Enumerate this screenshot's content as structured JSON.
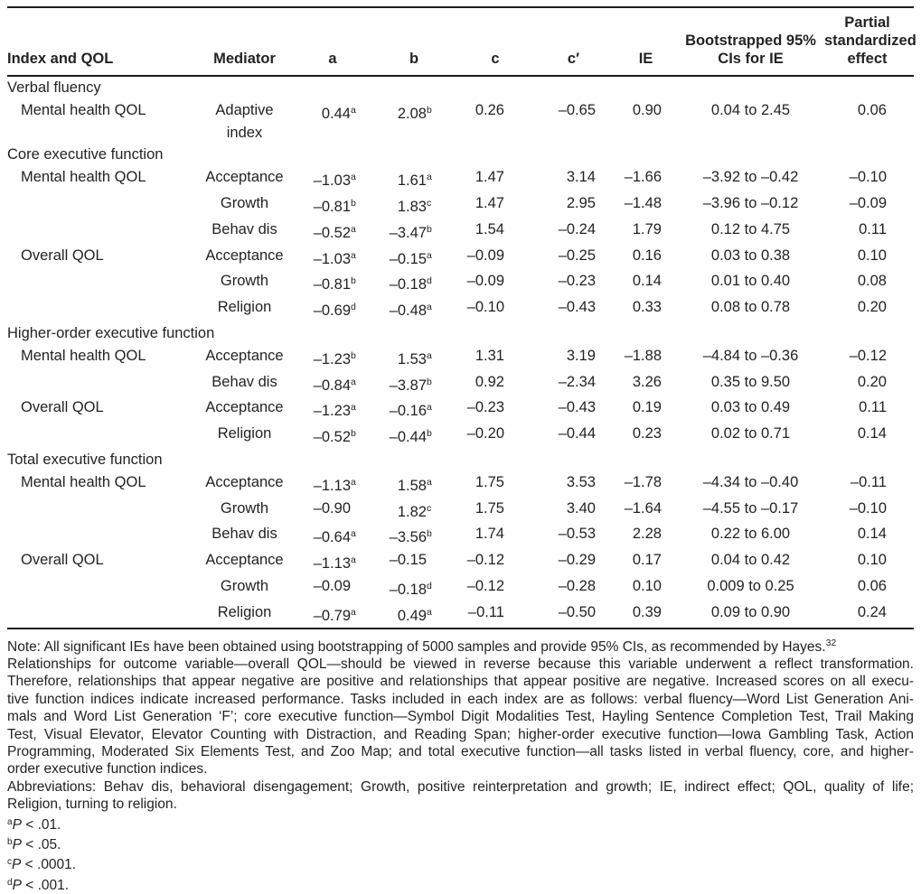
{
  "table": {
    "columns": [
      {
        "key": "qol",
        "label": "Index and QOL"
      },
      {
        "key": "med",
        "label": "Mediator"
      },
      {
        "key": "a",
        "label": "a"
      },
      {
        "key": "b",
        "label": "b"
      },
      {
        "key": "c",
        "label": "c"
      },
      {
        "key": "cp",
        "label": "c′"
      },
      {
        "key": "ie",
        "label": "IE"
      },
      {
        "key": "ci",
        "label": "Bootstrapped 95% CIs for IE"
      },
      {
        "key": "pse",
        "label": "Partial standardized effect"
      }
    ],
    "rows": [
      {
        "type": "section",
        "label": "Verbal fluency"
      },
      {
        "type": "data",
        "qol": "Mental health QOL",
        "mediator": "Adaptive index",
        "a": "0.44|a",
        "b": "2.08|b",
        "c": "0.26",
        "cp": "–0.65",
        "ie": "0.90",
        "ci": "0.04 to 2.45",
        "pse": "0.06"
      },
      {
        "type": "section",
        "label": "Core executive function"
      },
      {
        "type": "data",
        "qol": "Mental health QOL",
        "mediator": "Acceptance",
        "a": "–1.03|a",
        "b": "1.61|a",
        "c": "1.47",
        "cp": "3.14",
        "ie": "–1.66",
        "ci": "–3.92 to –0.42",
        "pse": "–0.10"
      },
      {
        "type": "data",
        "qol": "",
        "mediator": "Growth",
        "a": "–0.81|b",
        "b": "1.83|c",
        "c": "1.47",
        "cp": "2.95",
        "ie": "–1.48",
        "ci": "–3.96 to –0.12",
        "pse": "–0.09"
      },
      {
        "type": "data",
        "qol": "",
        "mediator": "Behav dis",
        "a": "–0.52|a",
        "b": "–3.47|b",
        "c": "1.54",
        "cp": "–0.24",
        "ie": "1.79",
        "ci": "0.12 to 4.75",
        "pse": "0.11"
      },
      {
        "type": "data",
        "qol": "Overall QOL",
        "mediator": "Acceptance",
        "a": "–1.03|a",
        "b": "–0.15|a",
        "c": "–0.09",
        "cp": "–0.25",
        "ie": "0.16",
        "ci": "0.03 to 0.38",
        "pse": "0.10"
      },
      {
        "type": "data",
        "qol": "",
        "mediator": "Growth",
        "a": "–0.81|b",
        "b": "–0.18|d",
        "c": "–0.09",
        "cp": "–0.23",
        "ie": "0.14",
        "ci": "0.01 to 0.40",
        "pse": "0.08"
      },
      {
        "type": "data",
        "qol": "",
        "mediator": "Religion",
        "a": "–0.69|d",
        "b": "–0.48|a",
        "c": "–0.10",
        "cp": "–0.43",
        "ie": "0.33",
        "ci": "0.08 to 0.78",
        "pse": "0.20"
      },
      {
        "type": "section",
        "label": "Higher-order executive function"
      },
      {
        "type": "data",
        "qol": "Mental health QOL",
        "mediator": "Acceptance",
        "a": "–1.23|b",
        "b": "1.53|a",
        "c": "1.31",
        "cp": "3.19",
        "ie": "–1.88",
        "ci": "–4.84 to –0.36",
        "pse": "–0.12"
      },
      {
        "type": "data",
        "qol": "",
        "mediator": "Behav dis",
        "a": "–0.84|a",
        "b": "–3.87|b",
        "c": "0.92",
        "cp": "–2.34",
        "ie": "3.26",
        "ci": "0.35 to 9.50",
        "pse": "0.20"
      },
      {
        "type": "data",
        "qol": "Overall QOL",
        "mediator": "Acceptance",
        "a": "–1.23|a",
        "b": "–0.16|a",
        "c": "–0.23",
        "cp": "–0.43",
        "ie": "0.19",
        "ci": "0.03 to 0.49",
        "pse": "0.11"
      },
      {
        "type": "data",
        "qol": "",
        "mediator": "Religion",
        "a": "–0.52|b",
        "b": "–0.44|b",
        "c": "–0.20",
        "cp": "–0.44",
        "ie": "0.23",
        "ci": "0.02 to 0.71",
        "pse": "0.14"
      },
      {
        "type": "section",
        "label": "Total executive function"
      },
      {
        "type": "data",
        "qol": "Mental health QOL",
        "mediator": "Acceptance",
        "a": "–1.13|a",
        "b": "1.58|a",
        "c": "1.75",
        "cp": "3.53",
        "ie": "–1.78",
        "ci": "–4.34 to –0.40",
        "pse": "–0.11"
      },
      {
        "type": "data",
        "qol": "",
        "mediator": "Growth",
        "a": "–0.90",
        "b": "1.82|c",
        "c": "1.75",
        "cp": "3.40",
        "ie": "–1.64",
        "ci": "–4.55 to –0.17",
        "pse": "–0.10"
      },
      {
        "type": "data",
        "qol": "",
        "mediator": "Behav dis",
        "a": "–0.64|a",
        "b": "–3.56|b",
        "c": "1.74",
        "cp": "–0.53",
        "ie": "2.28",
        "ci": "0.22 to 6.00",
        "pse": "0.14"
      },
      {
        "type": "data",
        "qol": "Overall QOL",
        "mediator": "Acceptance",
        "a": "–1.13|a",
        "b": "–0.15",
        "c": "–0.12",
        "cp": "–0.29",
        "ie": "0.17",
        "ci": "0.04 to 0.42",
        "pse": "0.10"
      },
      {
        "type": "data",
        "qol": "",
        "mediator": "Growth",
        "a": "–0.09",
        "b": "–0.18|d",
        "c": "–0.12",
        "cp": "–0.28",
        "ie": "0.10",
        "ci": "0.009 to 0.25",
        "pse": "0.06"
      },
      {
        "type": "data",
        "qol": "",
        "mediator": "Religion",
        "a": "–0.79|a",
        "b": "0.49|a",
        "c": "–0.11",
        "cp": "–0.50",
        "ie": "0.39",
        "ci": "0.09 to 0.90",
        "pse": "0.24"
      }
    ]
  },
  "notes": {
    "lines": [
      {
        "t": "Note: All significant IEs have been obtained using bootstrapping of 5000 samples and provide 95% CIs, as recommended by Hayes.",
        "j": false,
        "ref": "32"
      },
      {
        "t": "Relationships for outcome variable—overall QOL—should be viewed in reverse because this variable underwent a reflect transformation.",
        "j": true
      },
      {
        "t": "Therefore, relationships that appear negative are positive and relationships that appear positive are negative. Increased scores on all execu-",
        "j": true
      },
      {
        "t": "tive function indices indicate increased performance. Tasks included in each index are as follows: verbal fluency—Word List Generation Ani-",
        "j": true
      },
      {
        "t": "mals and Word List Generation ‘F’; core executive function—Symbol Digit Modalities Test, Hayling Sentence Completion Test, Trail Making",
        "j": true
      },
      {
        "t": "Test, Visual Elevator, Elevator Counting with Distraction, and Reading Span; higher-order executive function—Iowa Gambling Task, Action",
        "j": true
      },
      {
        "t": "Programming, Moderated Six Elements Test, and Zoo Map; and total executive function—all tasks listed in verbal fluency, core, and higher-",
        "j": true
      },
      {
        "t": "order executive function indices.",
        "j": false
      },
      {
        "t": "Abbreviations: Behav dis, behavioral disengagement; Growth, positive reinterpretation and growth; IE, indirect effect; QOL, quality of life;",
        "j": true
      },
      {
        "t": "Religion, turning to religion.",
        "j": false
      }
    ],
    "footnotes": [
      {
        "s": "a",
        "p": "P",
        "rest": " < .01."
      },
      {
        "s": "b",
        "p": "P",
        "rest": " < .05."
      },
      {
        "s": "c",
        "p": "P",
        "rest": " < .0001."
      },
      {
        "s": "d",
        "p": "P",
        "rest": " < .001."
      }
    ]
  }
}
